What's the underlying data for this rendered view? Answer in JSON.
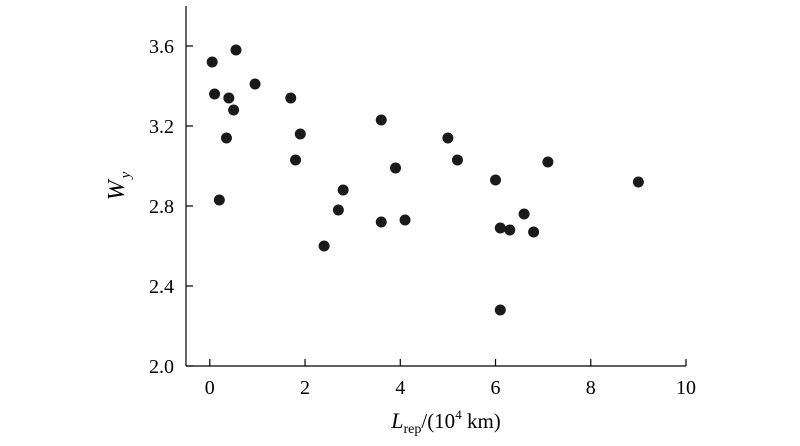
{
  "chart_data": {
    "type": "scatter",
    "title": "",
    "xlabel": {
      "main": "L",
      "sub": "rep",
      "rest_before_sup": "/(10",
      "sup": "4",
      "rest_after_sup": " km)"
    },
    "ylabel": {
      "main": "W",
      "sub": "y"
    },
    "xlim": [
      -0.5,
      10
    ],
    "ylim": [
      2.0,
      3.8
    ],
    "xticks": [
      0,
      2,
      4,
      6,
      8,
      10
    ],
    "yticks": [
      2.0,
      2.4,
      2.8,
      3.2,
      3.6
    ],
    "xtick_labels": [
      "0",
      "2",
      "4",
      "6",
      "8",
      "10"
    ],
    "ytick_labels": [
      "2.0",
      "2.4",
      "2.8",
      "3.2",
      "3.6"
    ],
    "grid": false,
    "legend": "none",
    "marker_color": "#1a1a1a",
    "points": [
      {
        "x": 0.05,
        "y": 3.52
      },
      {
        "x": 0.1,
        "y": 3.36
      },
      {
        "x": 0.2,
        "y": 2.83
      },
      {
        "x": 0.35,
        "y": 3.14
      },
      {
        "x": 0.4,
        "y": 3.34
      },
      {
        "x": 0.5,
        "y": 3.28
      },
      {
        "x": 0.55,
        "y": 3.58
      },
      {
        "x": 0.95,
        "y": 3.41
      },
      {
        "x": 1.7,
        "y": 3.34
      },
      {
        "x": 1.8,
        "y": 3.03
      },
      {
        "x": 1.9,
        "y": 3.16
      },
      {
        "x": 2.4,
        "y": 2.6
      },
      {
        "x": 2.7,
        "y": 2.78
      },
      {
        "x": 2.8,
        "y": 2.88
      },
      {
        "x": 3.6,
        "y": 3.23
      },
      {
        "x": 3.6,
        "y": 2.72
      },
      {
        "x": 3.9,
        "y": 2.99
      },
      {
        "x": 4.1,
        "y": 2.73
      },
      {
        "x": 5.0,
        "y": 3.14
      },
      {
        "x": 5.2,
        "y": 3.03
      },
      {
        "x": 6.0,
        "y": 2.93
      },
      {
        "x": 6.1,
        "y": 2.69
      },
      {
        "x": 6.1,
        "y": 2.28
      },
      {
        "x": 6.3,
        "y": 2.68
      },
      {
        "x": 6.6,
        "y": 2.76
      },
      {
        "x": 6.8,
        "y": 2.67
      },
      {
        "x": 7.1,
        "y": 3.02
      },
      {
        "x": 9.0,
        "y": 2.92
      }
    ]
  }
}
